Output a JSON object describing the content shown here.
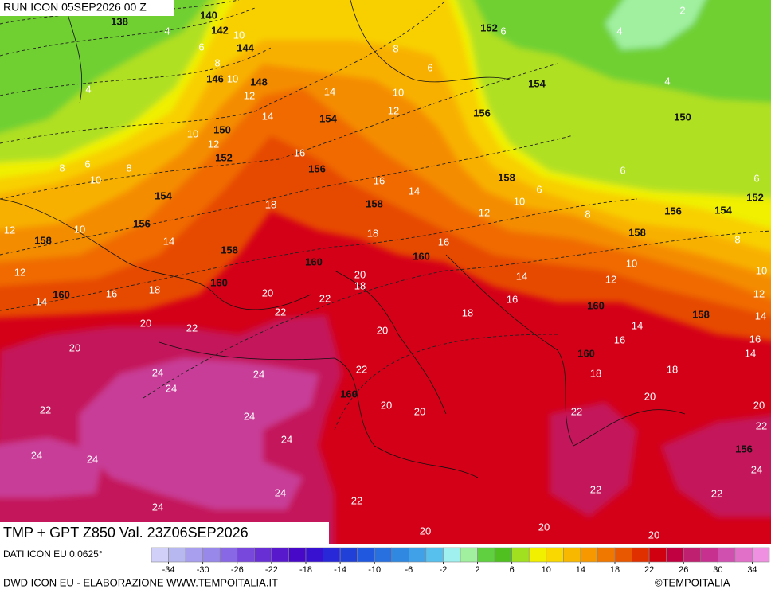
{
  "header": {
    "run": "RUN ICON 05SEP2026 00 Z"
  },
  "map": {
    "temperature_labels": [
      4,
      6,
      8,
      10,
      10,
      12,
      14,
      14,
      10,
      12,
      8,
      6,
      10,
      8,
      12,
      10,
      12,
      14,
      16,
      18,
      20,
      20,
      22,
      24,
      24,
      24,
      22,
      24,
      24,
      24,
      24,
      24,
      24,
      14,
      16,
      18,
      16,
      14,
      18,
      16,
      20,
      22,
      22,
      20,
      18,
      20,
      22,
      20,
      20,
      22,
      20,
      20,
      20,
      22,
      22,
      24,
      22,
      20,
      20,
      22,
      18,
      18,
      18,
      16,
      16,
      14,
      14,
      16,
      14,
      12,
      10,
      12,
      10,
      14,
      12,
      10,
      8,
      6,
      8,
      6,
      6,
      4,
      4,
      2,
      6,
      8,
      6,
      10,
      12,
      4
    ],
    "geopotential_labels": [
      138,
      140,
      142,
      144,
      146,
      148,
      150,
      152,
      154,
      156,
      158,
      160,
      158,
      160,
      156,
      154,
      158,
      160,
      160,
      160,
      152,
      154,
      156,
      150,
      158,
      156,
      154,
      152,
      158,
      160,
      160,
      158,
      156
    ]
  },
  "legend": {
    "title": "TMP + GPT Z850 Val. 23Z06SEP2026",
    "colors": [
      "#d0d0f8",
      "#b8b8f0",
      "#a8a0ee",
      "#9888ea",
      "#8868e4",
      "#7848dc",
      "#6830d4",
      "#5818cc",
      "#4808c8",
      "#3810d0",
      "#2828d8",
      "#2040d8",
      "#2058e0",
      "#2870e0",
      "#3088e0",
      "#40a0e8",
      "#58c0ec",
      "#a0f0f0",
      "#a0f0a0",
      "#60d040",
      "#50c020",
      "#a0e020",
      "#f0f000",
      "#f8d800",
      "#f8b800",
      "#f89800",
      "#f07800",
      "#e85800",
      "#e03000",
      "#d00010",
      "#c00040",
      "#c02070",
      "#c83090",
      "#d050b0",
      "#e070c8",
      "#f090e0"
    ],
    "ticks": [
      -34,
      -30,
      -26,
      -22,
      -18,
      -14,
      -10,
      -6,
      -2,
      2,
      6,
      10,
      14,
      18,
      22,
      26,
      30,
      34
    ]
  },
  "footer": {
    "data_source": "DATI ICON EU 0.0625°",
    "credit": "DWD ICON EU - ELABORAZIONE WWW.TEMPOITALIA.IT",
    "copyright": "©TEMPOITALIA"
  }
}
